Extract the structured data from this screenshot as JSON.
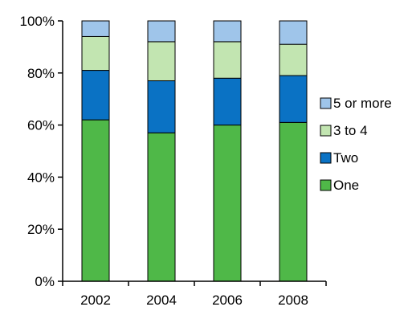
{
  "chart_data": {
    "type": "bar",
    "stacked": true,
    "percent": true,
    "categories": [
      "2002",
      "2004",
      "2006",
      "2008"
    ],
    "series": [
      {
        "name": "One",
        "color": "#4fb848",
        "values": [
          62,
          57,
          60,
          61
        ]
      },
      {
        "name": "Two",
        "color": "#0a72c4",
        "values": [
          19,
          20,
          18,
          18
        ]
      },
      {
        "name": "3 to 4",
        "color": "#c2e5b1",
        "values": [
          13,
          15,
          14,
          12
        ]
      },
      {
        "name": "5 or more",
        "color": "#9fc5ea",
        "values": [
          6,
          8,
          8,
          9
        ]
      }
    ],
    "yticks": [
      "0%",
      "20%",
      "40%",
      "60%",
      "80%",
      "100%"
    ],
    "ylim": [
      0,
      100
    ],
    "legend_order": [
      "5 or more",
      "3 to 4",
      "Two",
      "One"
    ],
    "legend_position": "right",
    "grid": false,
    "title": "",
    "xlabel": "",
    "ylabel": ""
  }
}
